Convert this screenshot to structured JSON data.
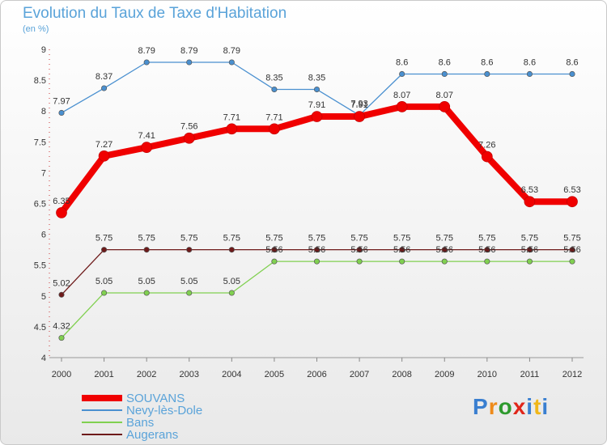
{
  "title": "Evolution du Taux de Taxe d'Habitation",
  "subtitle": "(en %)",
  "logo": {
    "text": "Proxiti",
    "letter_colors": [
      "#3a7fd0",
      "#ee8a1a",
      "#2e9a2e",
      "#e0261a",
      "#3a7fd0",
      "#f0b71a",
      "#3a7fd0"
    ]
  },
  "chart_data": {
    "type": "line",
    "x": [
      "2000",
      "2001",
      "2002",
      "2003",
      "2004",
      "2005",
      "2006",
      "2007",
      "2008",
      "2009",
      "2010",
      "2011",
      "2012"
    ],
    "ylim": [
      4,
      9
    ],
    "yticks": [
      "4",
      "4.5",
      "5",
      "5.5",
      "6",
      "6.5",
      "7",
      "7.5",
      "8",
      "8.5",
      "9"
    ],
    "grid": false,
    "legend_position": "bottom-left",
    "series": [
      {
        "name": "SOUVANS",
        "color": "#f00000",
        "values": [
          6.35,
          7.27,
          7.41,
          7.56,
          7.71,
          7.71,
          7.91,
          7.91,
          8.07,
          8.07,
          7.26,
          6.53,
          6.53
        ],
        "labels": [
          "6.35",
          "7.27",
          "7.41",
          "7.56",
          "7.71",
          "7.71",
          "7.91",
          "7.91",
          "8.07",
          "8.07",
          "7.26",
          "6.53",
          "6.53"
        ]
      },
      {
        "name": "Nevy-lès-Dole",
        "color": "#4a90d0",
        "values": [
          7.97,
          8.37,
          8.79,
          8.79,
          8.79,
          8.35,
          8.35,
          7.93,
          8.6,
          8.6,
          8.6,
          8.6,
          8.6
        ],
        "labels": [
          "7.97",
          "8.37",
          "8.79",
          "8.79",
          "8.79",
          "8.35",
          "8.35",
          "7.93",
          "8.6",
          "8.6",
          "8.6",
          "8.6",
          "8.6"
        ]
      },
      {
        "name": "Bans",
        "color": "#80d050",
        "values": [
          4.32,
          5.05,
          5.05,
          5.05,
          5.05,
          5.56,
          5.56,
          5.56,
          5.56,
          5.56,
          5.56,
          5.56,
          5.56
        ],
        "labels": [
          "4.32",
          "5.05",
          "5.05",
          "5.05",
          "5.05",
          "5.56",
          "5.56",
          "5.56",
          "5.56",
          "5.56",
          "5.56",
          "5.56",
          "5.56"
        ]
      },
      {
        "name": "Augerans",
        "color": "#6e1a1a",
        "values": [
          5.02,
          5.75,
          5.75,
          5.75,
          5.75,
          5.75,
          5.75,
          5.75,
          5.75,
          5.75,
          5.75,
          5.75,
          5.75
        ],
        "labels": [
          "5.02",
          "5.75",
          "5.75",
          "5.75",
          "5.75",
          "5.75",
          "5.75",
          "5.75",
          "5.75",
          "5.75",
          "5.75",
          "5.75",
          "5.75"
        ]
      }
    ]
  }
}
